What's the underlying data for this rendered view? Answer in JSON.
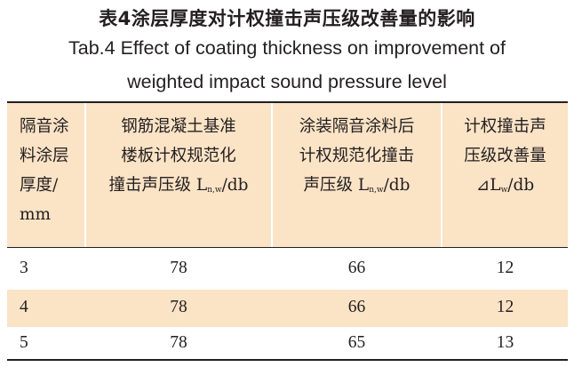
{
  "caption": {
    "zh": "表4涂层厚度对计权撞击声压级改善量的影响",
    "en_line1": "Tab.4 Effect of coating thickness on improvement of",
    "en_line2": "weighted impact sound pressure level"
  },
  "table": {
    "header": {
      "col1": [
        "隔音涂",
        "料涂层",
        "厚度/",
        "mm"
      ],
      "col2": {
        "line1": "钢筋混凝土基准",
        "line2": "楼板计权规范化",
        "line3_pre": "撞击声压级 L",
        "line3_sub": "n,w",
        "line3_post": "/db"
      },
      "col3": {
        "line1": "涂装隔音涂料后",
        "line2": "计权规范化撞击",
        "line3_pre": "声压级 L",
        "line3_sub": "n,w",
        "line3_post": "/db"
      },
      "col4": {
        "line1": "计权撞击声",
        "line2": "压级改善量",
        "line3_pre": "⊿L",
        "line3_sub": "w",
        "line3_post": "/db"
      }
    },
    "rows": [
      {
        "thickness": "3",
        "baseline": "78",
        "coated": "66",
        "improvement": "12"
      },
      {
        "thickness": "4",
        "baseline": "78",
        "coated": "66",
        "improvement": "12"
      },
      {
        "thickness": "5",
        "baseline": "78",
        "coated": "65",
        "improvement": "13"
      }
    ],
    "header_bg_color": "#fbe3c6",
    "shaded_row_color": "#fbe3c6"
  }
}
